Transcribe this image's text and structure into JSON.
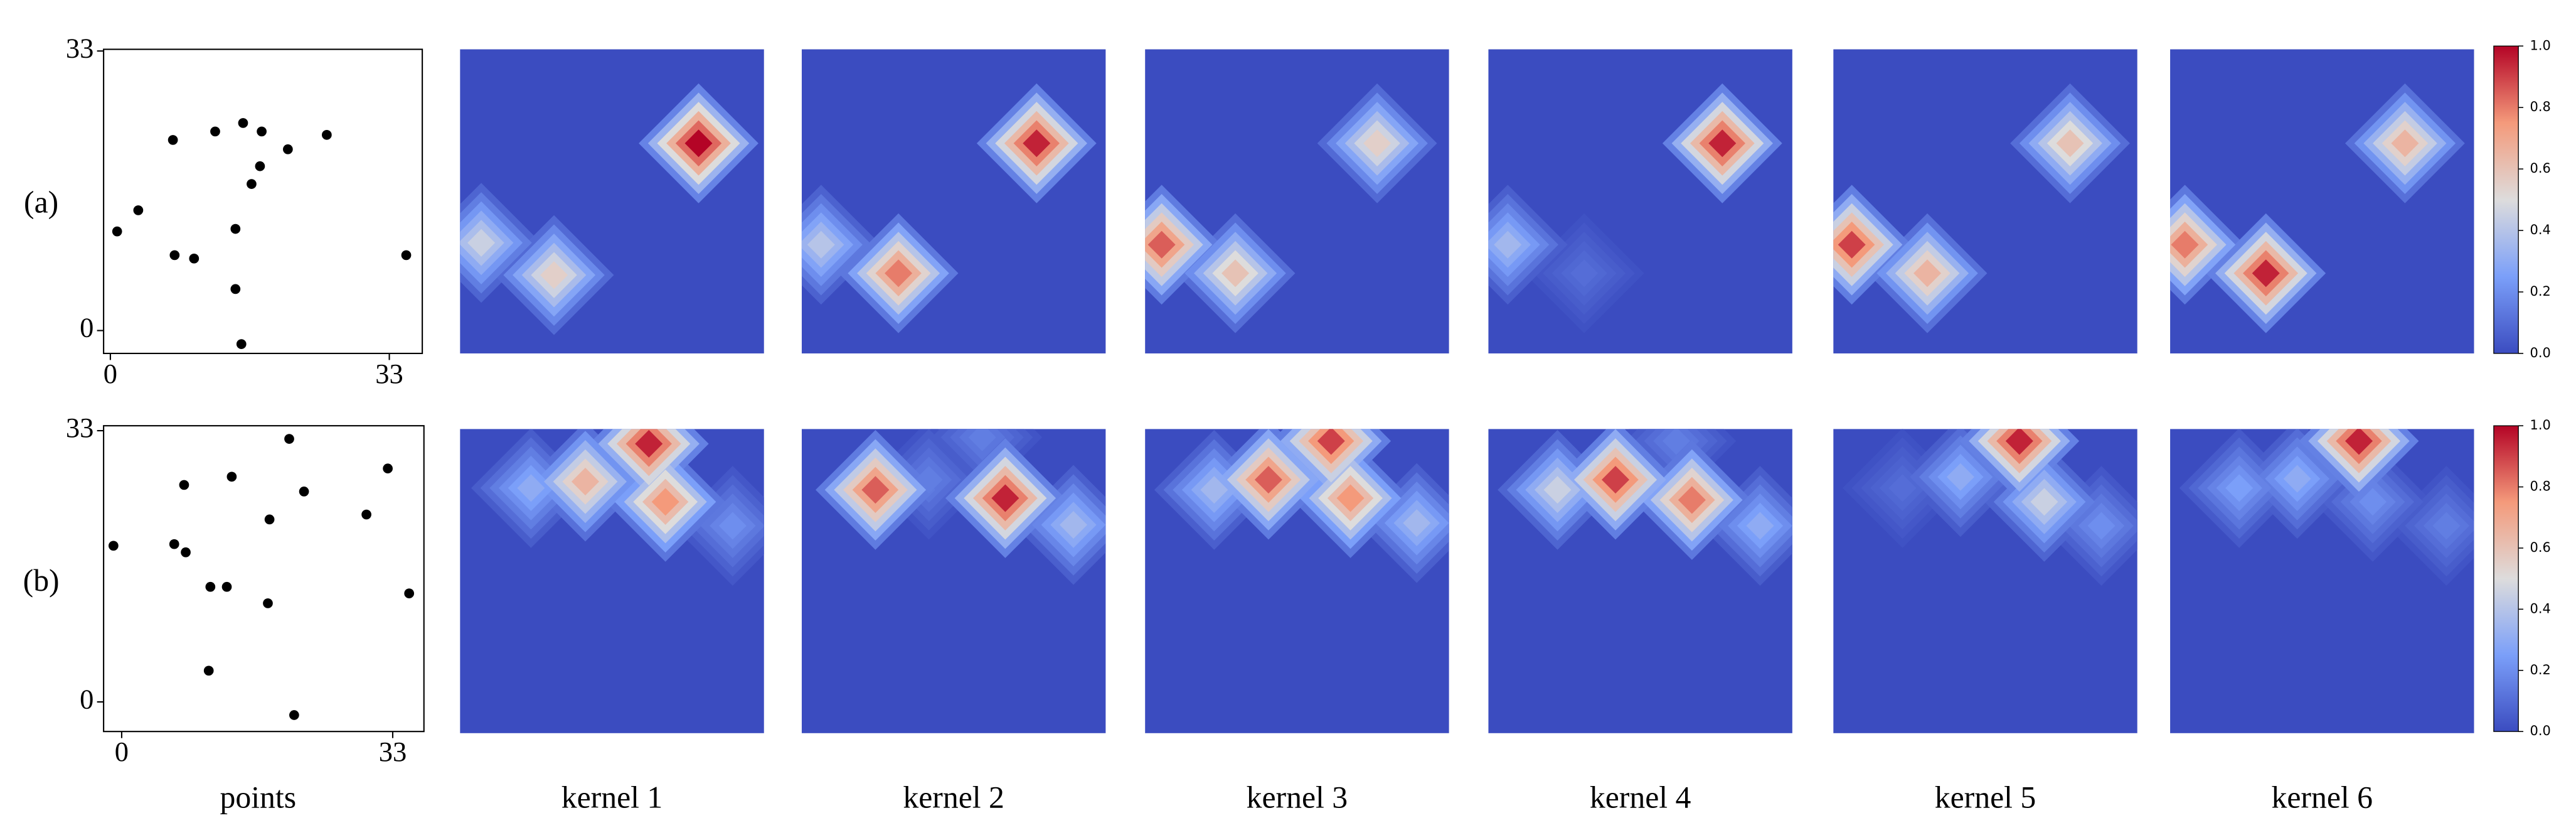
{
  "chart_data": [
    {
      "label": "(a)",
      "points": {
        "type": "scatter",
        "x": [
          7.4,
          12.4,
          15.7,
          17.9,
          21.0,
          25.6,
          17.7,
          16.7,
          3.3,
          0.8,
          14.8,
          7.6,
          9.9,
          35.0,
          14.8,
          15.5
        ],
        "y": [
          22.5,
          23.5,
          24.5,
          23.5,
          21.4,
          23.1,
          19.4,
          17.3,
          14.2,
          11.7,
          12.0,
          8.9,
          8.5,
          8.9,
          4.9,
          -1.6
        ],
        "xlim": [
          -0.8,
          36.9
        ],
        "ylim": [
          -2.7,
          33.2
        ],
        "xticks": [
          0,
          33
        ],
        "yticks": [
          0,
          33
        ]
      },
      "kernels": [
        {
          "type": "heatmap",
          "blobs": [
            {
              "x": 25.9,
              "y": 10.2,
              "peak": 1.0
            },
            {
              "x": 2.3,
              "y": 21.0,
              "peak": 0.45
            },
            {
              "x": 10.2,
              "y": 24.5,
              "peak": 0.55
            }
          ]
        },
        {
          "type": "heatmap",
          "blobs": [
            {
              "x": 25.5,
              "y": 10.2,
              "peak": 0.95
            },
            {
              "x": 2.1,
              "y": 21.2,
              "peak": 0.4
            },
            {
              "x": 10.5,
              "y": 24.3,
              "peak": 0.8
            }
          ]
        },
        {
          "type": "heatmap",
          "blobs": [
            {
              "x": 25.2,
              "y": 10.2,
              "peak": 0.55
            },
            {
              "x": 1.8,
              "y": 21.2,
              "peak": 0.85
            },
            {
              "x": 9.8,
              "y": 24.3,
              "peak": 0.6
            }
          ]
        },
        {
          "type": "heatmap",
          "blobs": [
            {
              "x": 25.4,
              "y": 10.2,
              "peak": 0.95
            },
            {
              "x": 2.1,
              "y": 21.2,
              "peak": 0.35
            },
            {
              "x": 10.4,
              "y": 24.3,
              "peak": 0.1
            }
          ]
        },
        {
          "type": "heatmap",
          "blobs": [
            {
              "x": 25.7,
              "y": 10.2,
              "peak": 0.6
            },
            {
              "x": 2.0,
              "y": 21.2,
              "peak": 0.9
            },
            {
              "x": 10.2,
              "y": 24.3,
              "peak": 0.65
            }
          ]
        },
        {
          "type": "heatmap",
          "blobs": [
            {
              "x": 25.5,
              "y": 10.2,
              "peak": 0.65
            },
            {
              "x": 1.6,
              "y": 21.2,
              "peak": 0.8
            },
            {
              "x": 10.4,
              "y": 24.3,
              "peak": 0.95
            }
          ]
        }
      ]
    },
    {
      "label": "(b)",
      "points": {
        "type": "scatter",
        "x": [
          -1.0,
          7.6,
          13.4,
          20.4,
          22.2,
          32.4,
          29.8,
          18.0,
          6.4,
          7.8,
          10.8,
          12.8,
          35.0,
          17.8,
          10.6,
          21.0
        ],
        "y": [
          19.0,
          26.4,
          27.4,
          32.0,
          25.6,
          28.4,
          22.8,
          22.2,
          19.2,
          18.2,
          14.0,
          14.0,
          13.2,
          12.0,
          3.8,
          -1.6
        ],
        "xlim": [
          -2.2,
          36.8
        ],
        "ylim": [
          -3.6,
          33.6
        ],
        "xticks": [
          0,
          33
        ],
        "yticks": [
          0,
          33
        ]
      },
      "kernels": [
        {
          "type": "heatmap",
          "blobs": [
            {
              "x": 20.5,
              "y": 1.6,
              "peak": 0.95
            },
            {
              "x": 13.6,
              "y": 5.7,
              "peak": 0.65
            },
            {
              "x": 7.7,
              "y": 6.4,
              "peak": 0.3
            },
            {
              "x": 22.3,
              "y": 7.9,
              "peak": 0.75
            },
            {
              "x": 29.6,
              "y": 10.5,
              "peak": 0.2
            }
          ]
        },
        {
          "type": "heatmap",
          "blobs": [
            {
              "x": 8.0,
              "y": 6.6,
              "peak": 0.85
            },
            {
              "x": 13.8,
              "y": 5.5,
              "peak": 0.15
            },
            {
              "x": 19.6,
              "y": 0.9,
              "peak": 0.15
            },
            {
              "x": 22.1,
              "y": 7.5,
              "peak": 0.95
            },
            {
              "x": 29.5,
              "y": 10.4,
              "peak": 0.35
            }
          ]
        },
        {
          "type": "heatmap",
          "blobs": [
            {
              "x": 20.2,
              "y": 1.3,
              "peak": 0.9
            },
            {
              "x": 13.4,
              "y": 5.5,
              "peak": 0.85
            },
            {
              "x": 7.5,
              "y": 6.6,
              "peak": 0.35
            },
            {
              "x": 22.3,
              "y": 7.5,
              "peak": 0.75
            },
            {
              "x": 29.5,
              "y": 10.2,
              "peak": 0.35
            }
          ]
        },
        {
          "type": "heatmap",
          "blobs": [
            {
              "x": 13.8,
              "y": 5.5,
              "peak": 0.9
            },
            {
              "x": 7.5,
              "y": 6.6,
              "peak": 0.45
            },
            {
              "x": 22.1,
              "y": 7.7,
              "peak": 0.8
            },
            {
              "x": 29.5,
              "y": 10.5,
              "peak": 0.3
            },
            {
              "x": 20.4,
              "y": 1.3,
              "peak": 0.15
            }
          ]
        },
        {
          "type": "heatmap",
          "blobs": [
            {
              "x": 20.2,
              "y": 1.3,
              "peak": 0.95
            },
            {
              "x": 13.8,
              "y": 5.2,
              "peak": 0.3
            },
            {
              "x": 22.9,
              "y": 7.9,
              "peak": 0.45
            },
            {
              "x": 7.5,
              "y": 6.4,
              "peak": 0.1
            },
            {
              "x": 29.1,
              "y": 10.5,
              "peak": 0.2
            }
          ]
        },
        {
          "type": "heatmap",
          "blobs": [
            {
              "x": 20.5,
              "y": 1.3,
              "peak": 0.95
            },
            {
              "x": 13.8,
              "y": 5.4,
              "peak": 0.3
            },
            {
              "x": 7.5,
              "y": 6.4,
              "peak": 0.25
            },
            {
              "x": 22.0,
              "y": 7.9,
              "peak": 0.2
            },
            {
              "x": 30.0,
              "y": 10.5,
              "peak": 0.15
            }
          ]
        }
      ]
    }
  ],
  "titles": [
    "points",
    "kernel 1",
    "kernel 2",
    "kernel 3",
    "kernel 4",
    "kernel 5",
    "kernel 6"
  ],
  "heatmap_extent": [
    0,
    33
  ],
  "colormap": [
    "#3b4cc0",
    "#7b9ff9",
    "#dddcdc",
    "#f49a7b",
    "#b40426"
  ],
  "clim": [
    0,
    1
  ],
  "colorbar_ticks": [
    {
      "value": 0,
      "label": "0.0"
    },
    {
      "value": 0.2,
      "label": "0.2"
    },
    {
      "value": 0.4,
      "label": "0.4"
    },
    {
      "value": 0.6,
      "label": "0.6"
    },
    {
      "value": 0.8,
      "label": "0.8"
    },
    {
      "value": 1,
      "label": "1.0"
    }
  ]
}
